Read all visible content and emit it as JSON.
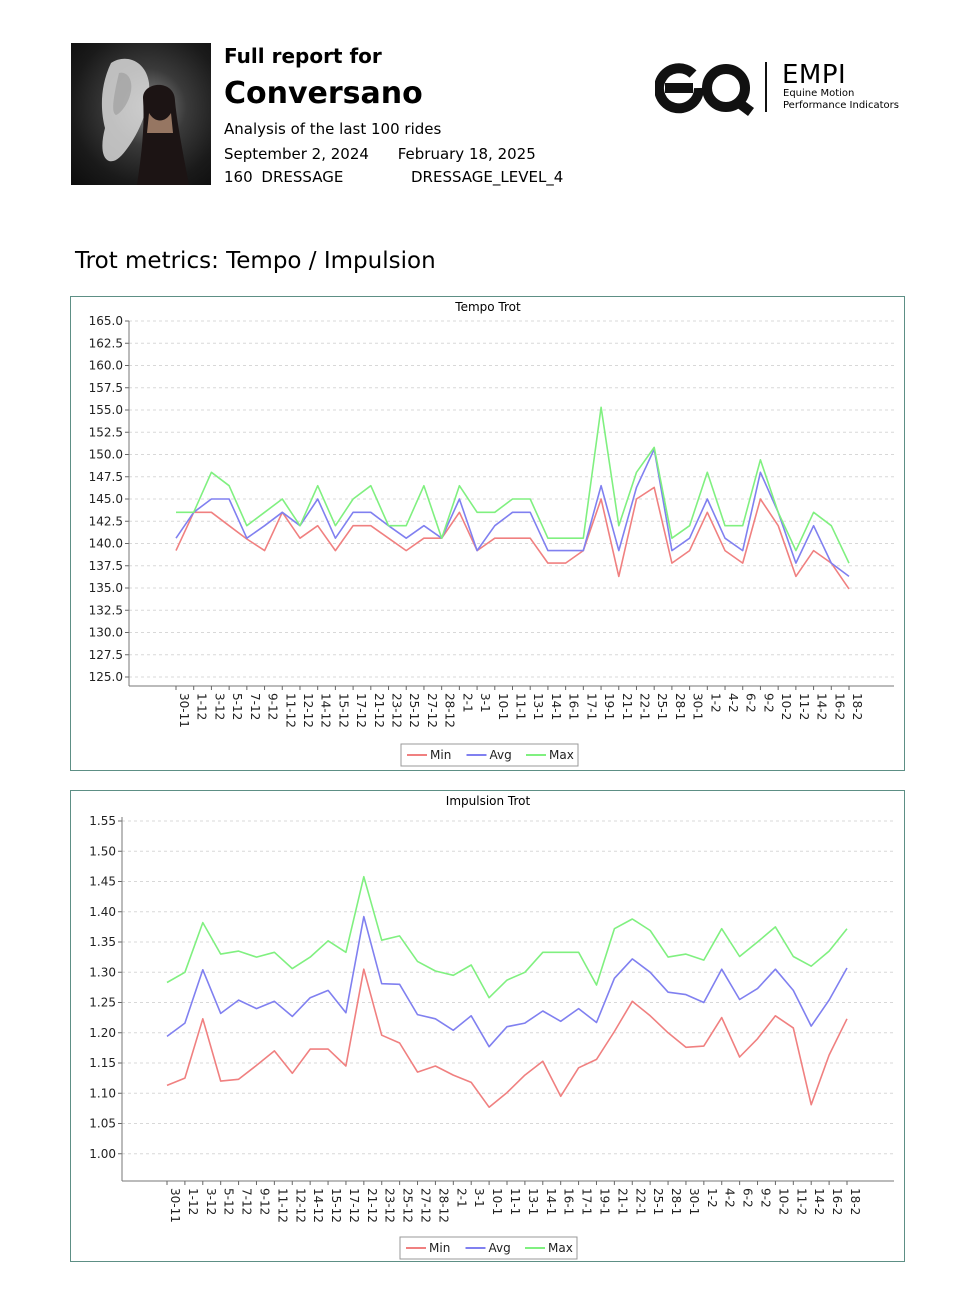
{
  "header": {
    "line1": "Full report for",
    "horse_name": "Conversano",
    "analysis": "Analysis of the last 100 rides",
    "date_from": "September 2, 2024",
    "date_to": "February 18, 2025",
    "count": "160",
    "discipline": "DRESSAGE",
    "level": "DRESSAGE_LEVEL_4"
  },
  "logo": {
    "brand": "EMPI",
    "sub1": "Equine Motion",
    "sub2": "Performance Indicators"
  },
  "section_title": "Trot metrics: Tempo / Impulsion",
  "colors": {
    "min": "#f08080",
    "avg": "#8080f0",
    "max": "#80f080",
    "frame": "#5d8f85"
  },
  "chart_data": [
    {
      "type": "line",
      "title": "Tempo Trot",
      "xlabel": "",
      "ylabel": "",
      "ylim": [
        125.0,
        165.0
      ],
      "yticks": [
        "165.0",
        "162.5",
        "160.0",
        "157.5",
        "155.0",
        "152.5",
        "150.0",
        "147.5",
        "145.0",
        "142.5",
        "140.0",
        "137.5",
        "135.0",
        "132.5",
        "130.0",
        "127.5",
        "125.0"
      ],
      "grid": true,
      "legend": "bottom",
      "categories": [
        "30-11",
        "1-12",
        "3-12",
        "5-12",
        "7-12",
        "9-12",
        "11-12",
        "12-12",
        "14-12",
        "15-12",
        "17-12",
        "21-12",
        "23-12",
        "25-12",
        "27-12",
        "28-12",
        "2-1",
        "3-1",
        "10-1",
        "11-1",
        "13-1",
        "14-1",
        "16-1",
        "17-1",
        "19-1",
        "21-1",
        "22-1",
        "25-1",
        "28-1",
        "30-1",
        "1-2",
        "4-2",
        "6-2",
        "9-2",
        "10-2",
        "11-2",
        "14-2",
        "16-2",
        "18-2"
      ],
      "series": [
        {
          "name": "Min",
          "values": [
            139.2,
            143.5,
            143.5,
            142.0,
            140.5,
            139.2,
            143.5,
            140.6,
            142.0,
            139.2,
            142.0,
            142.0,
            140.6,
            139.2,
            140.6,
            140.6,
            143.5,
            139.2,
            140.6,
            140.6,
            140.6,
            137.8,
            137.8,
            139.2,
            145.0,
            136.3,
            145.0,
            146.3,
            137.8,
            139.2,
            143.5,
            139.2,
            137.8,
            145.0,
            142.0,
            136.3,
            139.2,
            137.8,
            134.9
          ]
        },
        {
          "name": "Avg",
          "values": [
            140.6,
            143.5,
            145.0,
            145.0,
            140.6,
            142.0,
            143.5,
            142.0,
            145.0,
            140.6,
            143.5,
            143.5,
            142.0,
            140.6,
            142.0,
            140.6,
            145.0,
            139.2,
            142.0,
            143.5,
            143.5,
            139.2,
            139.2,
            139.2,
            146.5,
            139.2,
            146.3,
            150.6,
            139.2,
            140.6,
            145.0,
            140.6,
            139.2,
            148.0,
            143.5,
            137.8,
            142.0,
            137.8,
            136.3
          ]
        },
        {
          "name": "Max",
          "values": [
            143.5,
            143.5,
            148.0,
            146.5,
            142.0,
            143.5,
            145.0,
            142.0,
            146.5,
            142.0,
            145.0,
            146.5,
            142.0,
            142.0,
            146.5,
            140.6,
            146.5,
            143.5,
            143.5,
            145.0,
            145.0,
            140.6,
            140.6,
            140.6,
            155.3,
            142.0,
            148.0,
            150.8,
            140.6,
            142.0,
            148.0,
            142.0,
            142.0,
            149.4,
            143.5,
            139.2,
            143.5,
            142.0,
            137.8
          ]
        }
      ]
    },
    {
      "type": "line",
      "title": "Impulsion Trot",
      "xlabel": "",
      "ylabel": "",
      "ylim": [
        0.95,
        1.55
      ],
      "yticks": [
        "1.55",
        "1.50",
        "1.45",
        "1.40",
        "1.35",
        "1.30",
        "1.25",
        "1.20",
        "1.15",
        "1.10",
        "1.05",
        "1.00"
      ],
      "grid": true,
      "legend": "bottom",
      "categories": [
        "30-11",
        "1-12",
        "3-12",
        "5-12",
        "7-12",
        "9-12",
        "11-12",
        "12-12",
        "14-12",
        "15-12",
        "17-12",
        "21-12",
        "23-12",
        "25-12",
        "27-12",
        "28-12",
        "2-1",
        "3-1",
        "10-1",
        "11-1",
        "13-1",
        "14-1",
        "16-1",
        "17-1",
        "19-1",
        "21-1",
        "22-1",
        "25-1",
        "28-1",
        "30-1",
        "1-2",
        "4-2",
        "6-2",
        "9-2",
        "10-2",
        "11-2",
        "14-2",
        "16-2",
        "18-2"
      ],
      "series": [
        {
          "name": "Min",
          "values": [
            1.113,
            1.125,
            1.223,
            1.12,
            1.123,
            1.146,
            1.17,
            1.133,
            1.173,
            1.173,
            1.145,
            1.305,
            1.196,
            1.183,
            1.135,
            1.145,
            1.13,
            1.118,
            1.077,
            1.101,
            1.13,
            1.153,
            1.095,
            1.142,
            1.156,
            1.202,
            1.252,
            1.228,
            1.2,
            1.176,
            1.178,
            1.225,
            1.16,
            1.19,
            1.228,
            1.208,
            1.081,
            1.163,
            1.223
          ]
        },
        {
          "name": "Avg",
          "values": [
            1.194,
            1.216,
            1.304,
            1.232,
            1.254,
            1.24,
            1.252,
            1.227,
            1.258,
            1.27,
            1.233,
            1.392,
            1.281,
            1.28,
            1.23,
            1.223,
            1.204,
            1.228,
            1.177,
            1.21,
            1.216,
            1.236,
            1.219,
            1.24,
            1.217,
            1.29,
            1.322,
            1.3,
            1.267,
            1.263,
            1.25,
            1.305,
            1.255,
            1.273,
            1.305,
            1.27,
            1.211,
            1.254,
            1.307
          ]
        },
        {
          "name": "Max",
          "values": [
            1.283,
            1.3,
            1.382,
            1.33,
            1.335,
            1.325,
            1.333,
            1.306,
            1.325,
            1.352,
            1.333,
            1.458,
            1.353,
            1.36,
            1.318,
            1.302,
            1.295,
            1.312,
            1.258,
            1.287,
            1.3,
            1.333,
            1.333,
            1.333,
            1.279,
            1.372,
            1.388,
            1.369,
            1.325,
            1.33,
            1.32,
            1.372,
            1.326,
            1.35,
            1.375,
            1.326,
            1.31,
            1.335,
            1.372
          ]
        }
      ]
    }
  ]
}
